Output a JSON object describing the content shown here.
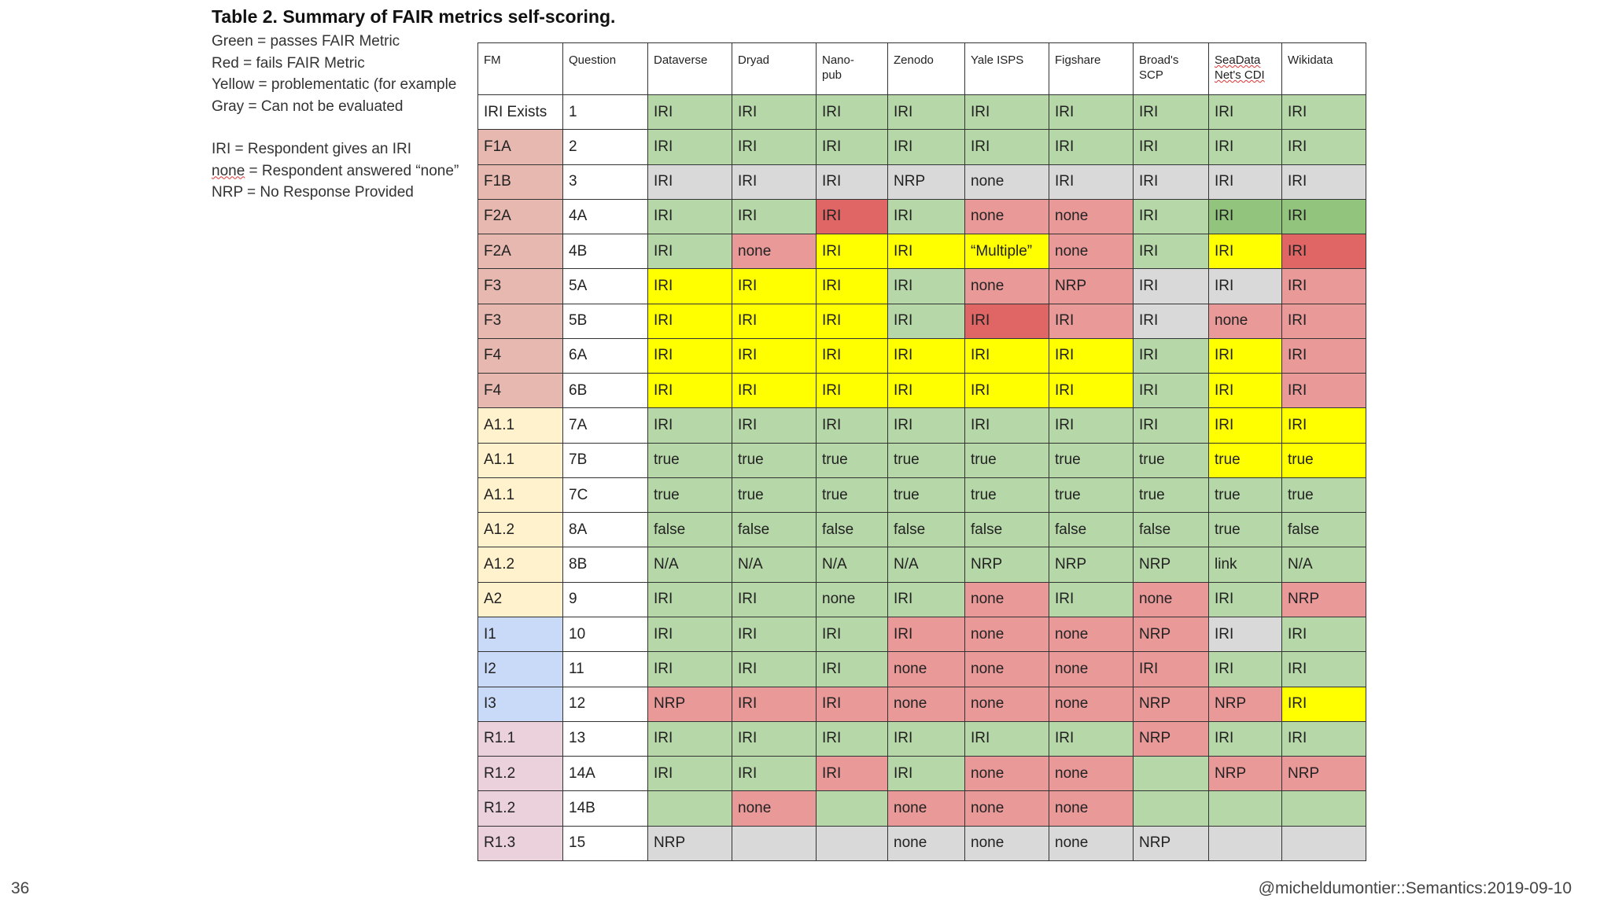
{
  "title": "Table 2. Summary of FAIR metrics self-scoring.",
  "legend": [
    {
      "key": "Green",
      "text": "Green = passes FAIR Metric"
    },
    {
      "key": "Red",
      "text": "Red = fails FAIR Metric"
    },
    {
      "key": "Yellow",
      "text": "Yellow = problementatic (for example"
    },
    {
      "key": "Gray",
      "text": "Gray = Can not be evaluated"
    }
  ],
  "abbreviations": [
    {
      "term": "IRI",
      "text": " = Respondent gives an IRI"
    },
    {
      "term": "none",
      "text": " = Respondent answered “none”"
    },
    {
      "term": "NRP",
      "text": " = No Response Provided"
    }
  ],
  "table": {
    "headers": [
      "FM",
      "Question",
      "Dataverse",
      "Dryad",
      "Nano-\npub",
      "Zenodo",
      "Yale ISPS",
      "Figshare",
      "Broad's\nSCP",
      "SeaData\nNet's CDI",
      "Wikidata"
    ],
    "rows": [
      {
        "fm": "IRI Exists",
        "fm_cat": "W",
        "q": "1",
        "cells": [
          [
            "IRI",
            "g"
          ],
          [
            "IRI",
            "g"
          ],
          [
            "IRI",
            "g"
          ],
          [
            "IRI",
            "g"
          ],
          [
            "IRI",
            "g"
          ],
          [
            "IRI",
            "g"
          ],
          [
            "IRI",
            "g"
          ],
          [
            "IRI",
            "g"
          ],
          [
            "IRI",
            "g"
          ]
        ]
      },
      {
        "fm": "F1A",
        "fm_cat": "F",
        "q": "2",
        "cells": [
          [
            "IRI",
            "g"
          ],
          [
            "IRI",
            "g"
          ],
          [
            "IRI",
            "g"
          ],
          [
            "IRI",
            "g"
          ],
          [
            "IRI",
            "g"
          ],
          [
            "IRI",
            "g"
          ],
          [
            "IRI",
            "g"
          ],
          [
            "IRI",
            "g"
          ],
          [
            "IRI",
            "g"
          ]
        ]
      },
      {
        "fm": "F1B",
        "fm_cat": "F",
        "q": "3",
        "cells": [
          [
            "IRI",
            "x"
          ],
          [
            "IRI",
            "x"
          ],
          [
            "IRI",
            "x"
          ],
          [
            "NRP",
            "x"
          ],
          [
            "none",
            "x"
          ],
          [
            "IRI",
            "x"
          ],
          [
            "IRI",
            "x"
          ],
          [
            "IRI",
            "x"
          ],
          [
            "IRI",
            "x"
          ]
        ]
      },
      {
        "fm": "F2A",
        "fm_cat": "F",
        "q": "4A",
        "cells": [
          [
            "IRI",
            "g"
          ],
          [
            "IRI",
            "g"
          ],
          [
            "IRI",
            "rd"
          ],
          [
            "IRI",
            "g"
          ],
          [
            "none",
            "r"
          ],
          [
            "none",
            "r"
          ],
          [
            "IRI",
            "g"
          ],
          [
            "IRI",
            "gd"
          ],
          [
            "IRI",
            "gd"
          ]
        ]
      },
      {
        "fm": "F2A",
        "fm_cat": "F",
        "q": "4B",
        "cells": [
          [
            "IRI",
            "g"
          ],
          [
            "none",
            "r"
          ],
          [
            "IRI",
            "y"
          ],
          [
            "IRI",
            "y"
          ],
          [
            "“Multiple”",
            "y"
          ],
          [
            "none",
            "r"
          ],
          [
            "IRI",
            "g"
          ],
          [
            "IRI",
            "y"
          ],
          [
            "IRI",
            "rd"
          ]
        ]
      },
      {
        "fm": "F3",
        "fm_cat": "F",
        "q": "5A",
        "cells": [
          [
            "IRI",
            "y"
          ],
          [
            "IRI",
            "y"
          ],
          [
            "IRI",
            "y"
          ],
          [
            "IRI",
            "g"
          ],
          [
            "none",
            "r"
          ],
          [
            "NRP",
            "r"
          ],
          [
            "IRI",
            "x"
          ],
          [
            "IRI",
            "x"
          ],
          [
            "IRI",
            "r"
          ]
        ]
      },
      {
        "fm": "F3",
        "fm_cat": "F",
        "q": "5B",
        "cells": [
          [
            "IRI",
            "y"
          ],
          [
            "IRI",
            "y"
          ],
          [
            "IRI",
            "y"
          ],
          [
            "IRI",
            "g"
          ],
          [
            "IRI",
            "rd"
          ],
          [
            "IRI",
            "r"
          ],
          [
            "IRI",
            "x"
          ],
          [
            "none",
            "r"
          ],
          [
            "IRI",
            "r"
          ]
        ]
      },
      {
        "fm": "F4",
        "fm_cat": "F",
        "q": "6A",
        "cells": [
          [
            "IRI",
            "y"
          ],
          [
            "IRI",
            "y"
          ],
          [
            "IRI",
            "y"
          ],
          [
            "IRI",
            "y"
          ],
          [
            "IRI",
            "y"
          ],
          [
            "IRI",
            "y"
          ],
          [
            "IRI",
            "g"
          ],
          [
            "IRI",
            "y"
          ],
          [
            "IRI",
            "r"
          ]
        ]
      },
      {
        "fm": "F4",
        "fm_cat": "F",
        "q": "6B",
        "cells": [
          [
            "IRI",
            "y"
          ],
          [
            "IRI",
            "y"
          ],
          [
            "IRI",
            "y"
          ],
          [
            "IRI",
            "y"
          ],
          [
            "IRI",
            "y"
          ],
          [
            "IRI",
            "y"
          ],
          [
            "IRI",
            "g"
          ],
          [
            "IRI",
            "y"
          ],
          [
            "IRI",
            "r"
          ]
        ]
      },
      {
        "fm": "A1.1",
        "fm_cat": "A",
        "q": "7A",
        "cells": [
          [
            "IRI",
            "g"
          ],
          [
            "IRI",
            "g"
          ],
          [
            "IRI",
            "g"
          ],
          [
            "IRI",
            "g"
          ],
          [
            "IRI",
            "g"
          ],
          [
            "IRI",
            "g"
          ],
          [
            "IRI",
            "g"
          ],
          [
            "IRI",
            "y"
          ],
          [
            "IRI",
            "y"
          ]
        ]
      },
      {
        "fm": "A1.1",
        "fm_cat": "A",
        "q": "7B",
        "cells": [
          [
            "true",
            "g"
          ],
          [
            "true",
            "g"
          ],
          [
            "true",
            "g"
          ],
          [
            "true",
            "g"
          ],
          [
            "true",
            "g"
          ],
          [
            "true",
            "g"
          ],
          [
            "true",
            "g"
          ],
          [
            "true",
            "y"
          ],
          [
            "true",
            "y"
          ]
        ]
      },
      {
        "fm": "A1.1",
        "fm_cat": "A",
        "q": "7C",
        "cells": [
          [
            "true",
            "g"
          ],
          [
            "true",
            "g"
          ],
          [
            "true",
            "g"
          ],
          [
            "true",
            "g"
          ],
          [
            "true",
            "g"
          ],
          [
            "true",
            "g"
          ],
          [
            "true",
            "g"
          ],
          [
            "true",
            "g"
          ],
          [
            "true",
            "g"
          ]
        ]
      },
      {
        "fm": "A1.2",
        "fm_cat": "A",
        "q": "8A",
        "cells": [
          [
            "false",
            "g"
          ],
          [
            "false",
            "g"
          ],
          [
            "false",
            "g"
          ],
          [
            "false",
            "g"
          ],
          [
            "false",
            "g"
          ],
          [
            "false",
            "g"
          ],
          [
            "false",
            "g"
          ],
          [
            "true",
            "g"
          ],
          [
            "false",
            "g"
          ]
        ]
      },
      {
        "fm": "A1.2",
        "fm_cat": "A",
        "q": "8B",
        "cells": [
          [
            "N/A",
            "g"
          ],
          [
            "N/A",
            "g"
          ],
          [
            "N/A",
            "g"
          ],
          [
            "N/A",
            "g"
          ],
          [
            "NRP",
            "g"
          ],
          [
            "NRP",
            "g"
          ],
          [
            "NRP",
            "g"
          ],
          [
            "link",
            "g"
          ],
          [
            "N/A",
            "g"
          ]
        ]
      },
      {
        "fm": "A2",
        "fm_cat": "A",
        "q": "9",
        "cells": [
          [
            "IRI",
            "g"
          ],
          [
            "IRI",
            "g"
          ],
          [
            "none",
            "g"
          ],
          [
            "IRI",
            "g"
          ],
          [
            "none",
            "r"
          ],
          [
            "IRI",
            "g"
          ],
          [
            "none",
            "r"
          ],
          [
            "IRI",
            "g"
          ],
          [
            "NRP",
            "r"
          ]
        ]
      },
      {
        "fm": "I1",
        "fm_cat": "I",
        "q": "10",
        "cells": [
          [
            "IRI",
            "g"
          ],
          [
            "IRI",
            "g"
          ],
          [
            "IRI",
            "g"
          ],
          [
            "IRI",
            "r"
          ],
          [
            "none",
            "r"
          ],
          [
            "none",
            "r"
          ],
          [
            "NRP",
            "r"
          ],
          [
            "IRI",
            "x"
          ],
          [
            "IRI",
            "g"
          ]
        ]
      },
      {
        "fm": "I2",
        "fm_cat": "I",
        "q": "11",
        "cells": [
          [
            "IRI",
            "g"
          ],
          [
            "IRI",
            "g"
          ],
          [
            "IRI",
            "g"
          ],
          [
            "none",
            "r"
          ],
          [
            "none",
            "r"
          ],
          [
            "none",
            "r"
          ],
          [
            "IRI",
            "r"
          ],
          [
            "IRI",
            "g"
          ],
          [
            "IRI",
            "g"
          ]
        ]
      },
      {
        "fm": "I3",
        "fm_cat": "I",
        "q": "12",
        "cells": [
          [
            "NRP",
            "r"
          ],
          [
            "IRI",
            "r"
          ],
          [
            "IRI",
            "r"
          ],
          [
            "none",
            "r"
          ],
          [
            "none",
            "r"
          ],
          [
            "none",
            "r"
          ],
          [
            "NRP",
            "r"
          ],
          [
            "NRP",
            "r"
          ],
          [
            "IRI",
            "y"
          ]
        ]
      },
      {
        "fm": "R1.1",
        "fm_cat": "R",
        "q": "13",
        "cells": [
          [
            "IRI",
            "g"
          ],
          [
            "IRI",
            "g"
          ],
          [
            "IRI",
            "g"
          ],
          [
            "IRI",
            "g"
          ],
          [
            "IRI",
            "g"
          ],
          [
            "IRI",
            "g"
          ],
          [
            "NRP",
            "r"
          ],
          [
            "IRI",
            "g"
          ],
          [
            "IRI",
            "g"
          ]
        ]
      },
      {
        "fm": "R1.2",
        "fm_cat": "R",
        "q": "14A",
        "cells": [
          [
            "IRI",
            "g"
          ],
          [
            "IRI",
            "g"
          ],
          [
            "IRI",
            "r"
          ],
          [
            "IRI",
            "g"
          ],
          [
            "none",
            "r"
          ],
          [
            "none",
            "r"
          ],
          [
            "",
            "g"
          ],
          [
            "NRP",
            "r"
          ],
          [
            "NRP",
            "r"
          ]
        ]
      },
      {
        "fm": "R1.2",
        "fm_cat": "R",
        "q": "14B",
        "cells": [
          [
            "",
            "g"
          ],
          [
            "none",
            "r"
          ],
          [
            "",
            "g"
          ],
          [
            "none",
            "r"
          ],
          [
            "none",
            "r"
          ],
          [
            "none",
            "r"
          ],
          [
            "",
            "g"
          ],
          [
            "",
            "g"
          ],
          [
            "",
            "g"
          ]
        ]
      },
      {
        "fm": "R1.3",
        "fm_cat": "R",
        "q": "15",
        "cells": [
          [
            "NRP",
            "x"
          ],
          [
            "",
            "x"
          ],
          [
            "",
            "x"
          ],
          [
            "none",
            "x"
          ],
          [
            "none",
            "x"
          ],
          [
            "none",
            "x"
          ],
          [
            "NRP",
            "x"
          ],
          [
            "",
            "x"
          ],
          [
            "",
            "x"
          ]
        ]
      }
    ]
  },
  "footer": {
    "slide_number": "36",
    "credit": "@micheldumontier::Semantics:2019-09-10"
  }
}
